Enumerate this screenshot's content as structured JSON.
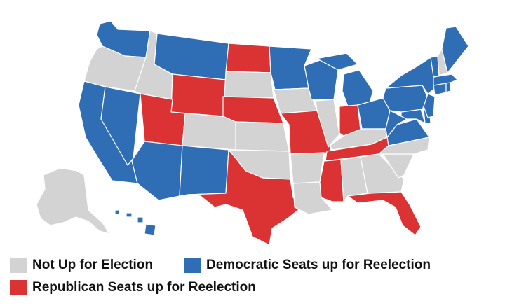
{
  "colors": {
    "not_up": "#d3d3d3",
    "democratic": "#2f6eb5",
    "republican": "#db3333"
  },
  "legend": [
    {
      "key": "not_up",
      "label": "Not Up for Election"
    },
    {
      "key": "democratic",
      "label": "Democratic Seats up for Reelection"
    },
    {
      "key": "republican",
      "label": "Republican Seats up for Reelection"
    }
  ],
  "states": {
    "WA": "democratic",
    "OR": "not_up",
    "CA": "democratic",
    "NV": "democratic",
    "ID": "not_up",
    "MT": "democratic",
    "WY": "republican",
    "UT": "republican",
    "AZ": "democratic",
    "CO": "not_up",
    "NM": "democratic",
    "ND": "republican",
    "SD": "not_up",
    "NE": "republican",
    "KS": "not_up",
    "OK": "not_up",
    "TX": "republican",
    "MN": "democratic",
    "IA": "not_up",
    "MO": "republican",
    "AR": "not_up",
    "LA": "not_up",
    "WI": "democratic",
    "IL": "not_up",
    "MI": "democratic",
    "IN": "republican",
    "OH": "democratic",
    "KY": "not_up",
    "TN": "republican",
    "MS": "republican",
    "AL": "not_up",
    "GA": "not_up",
    "FL": "republican",
    "SC": "not_up",
    "NC": "not_up",
    "VA": "democratic",
    "WV": "democratic",
    "PA": "democratic",
    "NY": "democratic",
    "VT": "democratic",
    "NH": "not_up",
    "ME": "democratic",
    "MA": "democratic",
    "CT": "democratic",
    "RI": "democratic",
    "NJ": "democratic",
    "DE": "democratic",
    "MD": "democratic",
    "AK": "not_up",
    "HI": "democratic"
  }
}
